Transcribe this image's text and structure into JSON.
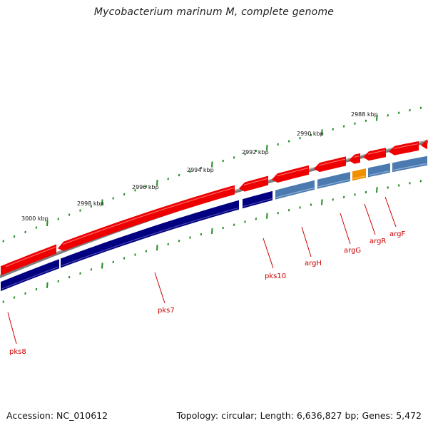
{
  "title": "Mycobacterium marinum M, complete genome",
  "footer": {
    "accession": "Accession: NC_010612",
    "summary": "Topology: circular; Length: 6,636,827 bp; Genes: 5,472"
  },
  "position_labels": [
    "2988 kbp",
    "2990 kbp",
    "2992 kbp",
    "2994 kbp",
    "2996 kbp",
    "2998 kbp",
    "3000 kbp"
  ],
  "genes": [
    {
      "name": "pks8",
      "strand": "reverse"
    },
    {
      "name": "pks7",
      "strand": "reverse"
    },
    {
      "name": "pks10",
      "strand": "reverse"
    },
    {
      "name": "argH",
      "strand": "reverse"
    },
    {
      "name": "argG",
      "strand": "reverse"
    },
    {
      "name": "argR",
      "strand": "reverse"
    },
    {
      "name": "argF",
      "strand": "reverse"
    }
  ],
  "colors": {
    "backbone": "#7a7a7a",
    "forward_cds": "#ee0000",
    "reverse_cds": "#000080",
    "reverse_arg": "#4a7ab0",
    "reverse_argR": "#f09000",
    "ticks": "#228b22",
    "gene_labels": "#cc0000"
  }
}
